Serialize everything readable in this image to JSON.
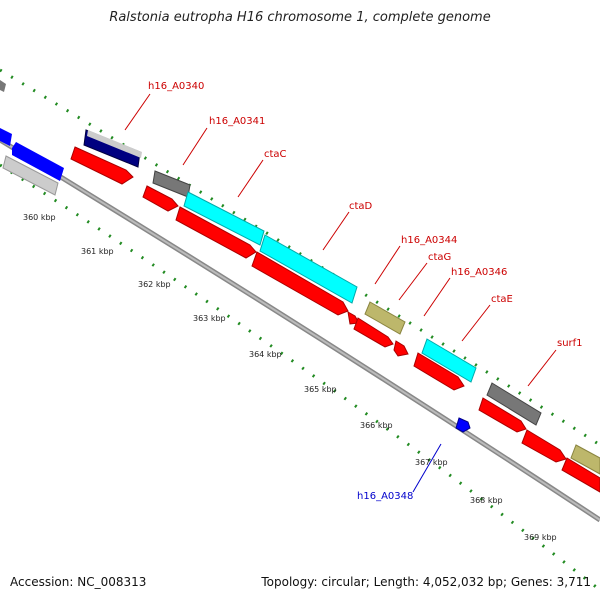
{
  "title": "Ralstonia eutropha H16 chromosome 1, complete genome",
  "footer": {
    "accession": "Accession: NC_008313",
    "summary": "Topology: circular; Length: 4,052,032 bp; Genes: 3,711"
  },
  "gene_labels": [
    {
      "text": "h16_A0340",
      "color": "#cc0000"
    },
    {
      "text": "h16_A0341",
      "color": "#cc0000"
    },
    {
      "text": "ctaC",
      "color": "#cc0000"
    },
    {
      "text": "ctaD",
      "color": "#cc0000"
    },
    {
      "text": "h16_A0344",
      "color": "#cc0000"
    },
    {
      "text": "ctaG",
      "color": "#cc0000"
    },
    {
      "text": "h16_A0346",
      "color": "#cc0000"
    },
    {
      "text": "ctaE",
      "color": "#cc0000"
    },
    {
      "text": "surf1",
      "color": "#cc0000"
    },
    {
      "text": "h16_A0348",
      "color": "#0000cc"
    }
  ],
  "ticks": [
    "360 kbp",
    "361 kbp",
    "362 kbp",
    "363 kbp",
    "364 kbp",
    "365 kbp",
    "366 kbp",
    "367 kbp",
    "368 kbp",
    "369 kbp"
  ],
  "colors": {
    "cds": "#ff0000",
    "gene": "#0000ff",
    "rRNA_like": "#00ffff",
    "misc": "#777777",
    "tan": "#bdb76b",
    "silver": "#cccccc",
    "navy": "#000080",
    "backbone": "#999999",
    "dots": "#228b22"
  }
}
